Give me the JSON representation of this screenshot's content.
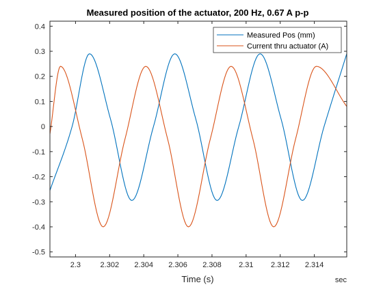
{
  "chart_data": {
    "type": "line",
    "title": "Measured position of the actuator, 200 Hz, 0.67 A p-p",
    "xlabel": "Time (s)",
    "x_unit_label": "sec",
    "ylabel": "",
    "xlim": [
      2.2985,
      2.3159
    ],
    "ylim": [
      -0.52,
      0.42
    ],
    "x_ticks": [
      2.3,
      2.302,
      2.304,
      2.306,
      2.308,
      2.31,
      2.312,
      2.314
    ],
    "x_tick_labels": [
      "2.3",
      "2.302",
      "2.304",
      "2.306",
      "2.308",
      "2.31",
      "2.312",
      "2.314"
    ],
    "y_ticks": [
      -0.5,
      -0.4,
      -0.3,
      -0.2,
      -0.1,
      0,
      0.1,
      0.2,
      0.3,
      0.4
    ],
    "y_tick_labels": [
      "-0.5",
      "-0.4",
      "-0.3",
      "-0.2",
      "-0.1",
      "0",
      "0.1",
      "0.2",
      "0.3",
      "0.4"
    ],
    "grid": false,
    "legend_position": "top-right",
    "series": [
      {
        "name": "Measured Pos (mm)",
        "color": "#0072BD",
        "points": [
          [
            2.2985,
            -0.255
          ],
          [
            2.2998,
            0.0
          ],
          [
            2.30082,
            0.29
          ],
          [
            2.30205,
            0.03
          ],
          [
            2.3033,
            -0.295
          ],
          [
            2.30457,
            0.0
          ],
          [
            2.30582,
            0.29
          ],
          [
            2.30705,
            0.03
          ],
          [
            2.3083,
            -0.295
          ],
          [
            2.30957,
            0.0
          ],
          [
            2.31082,
            0.29
          ],
          [
            2.31205,
            0.03
          ],
          [
            2.3133,
            -0.295
          ],
          [
            2.31457,
            0.0
          ],
          [
            2.3159,
            0.29
          ]
        ]
      },
      {
        "name": "Current thru actuator (A)",
        "color": "#D95319",
        "points": [
          [
            2.2985,
            -0.03
          ],
          [
            2.29912,
            0.24
          ],
          [
            2.3004,
            -0.05
          ],
          [
            2.30162,
            -0.4
          ],
          [
            2.3029,
            -0.05
          ],
          [
            2.30412,
            0.24
          ],
          [
            2.3054,
            -0.05
          ],
          [
            2.30662,
            -0.4
          ],
          [
            2.3079,
            -0.05
          ],
          [
            2.30912,
            0.24
          ],
          [
            2.3104,
            -0.05
          ],
          [
            2.31162,
            -0.4
          ],
          [
            2.3129,
            -0.05
          ],
          [
            2.31412,
            0.24
          ],
          [
            2.3159,
            0.08
          ]
        ]
      }
    ]
  }
}
